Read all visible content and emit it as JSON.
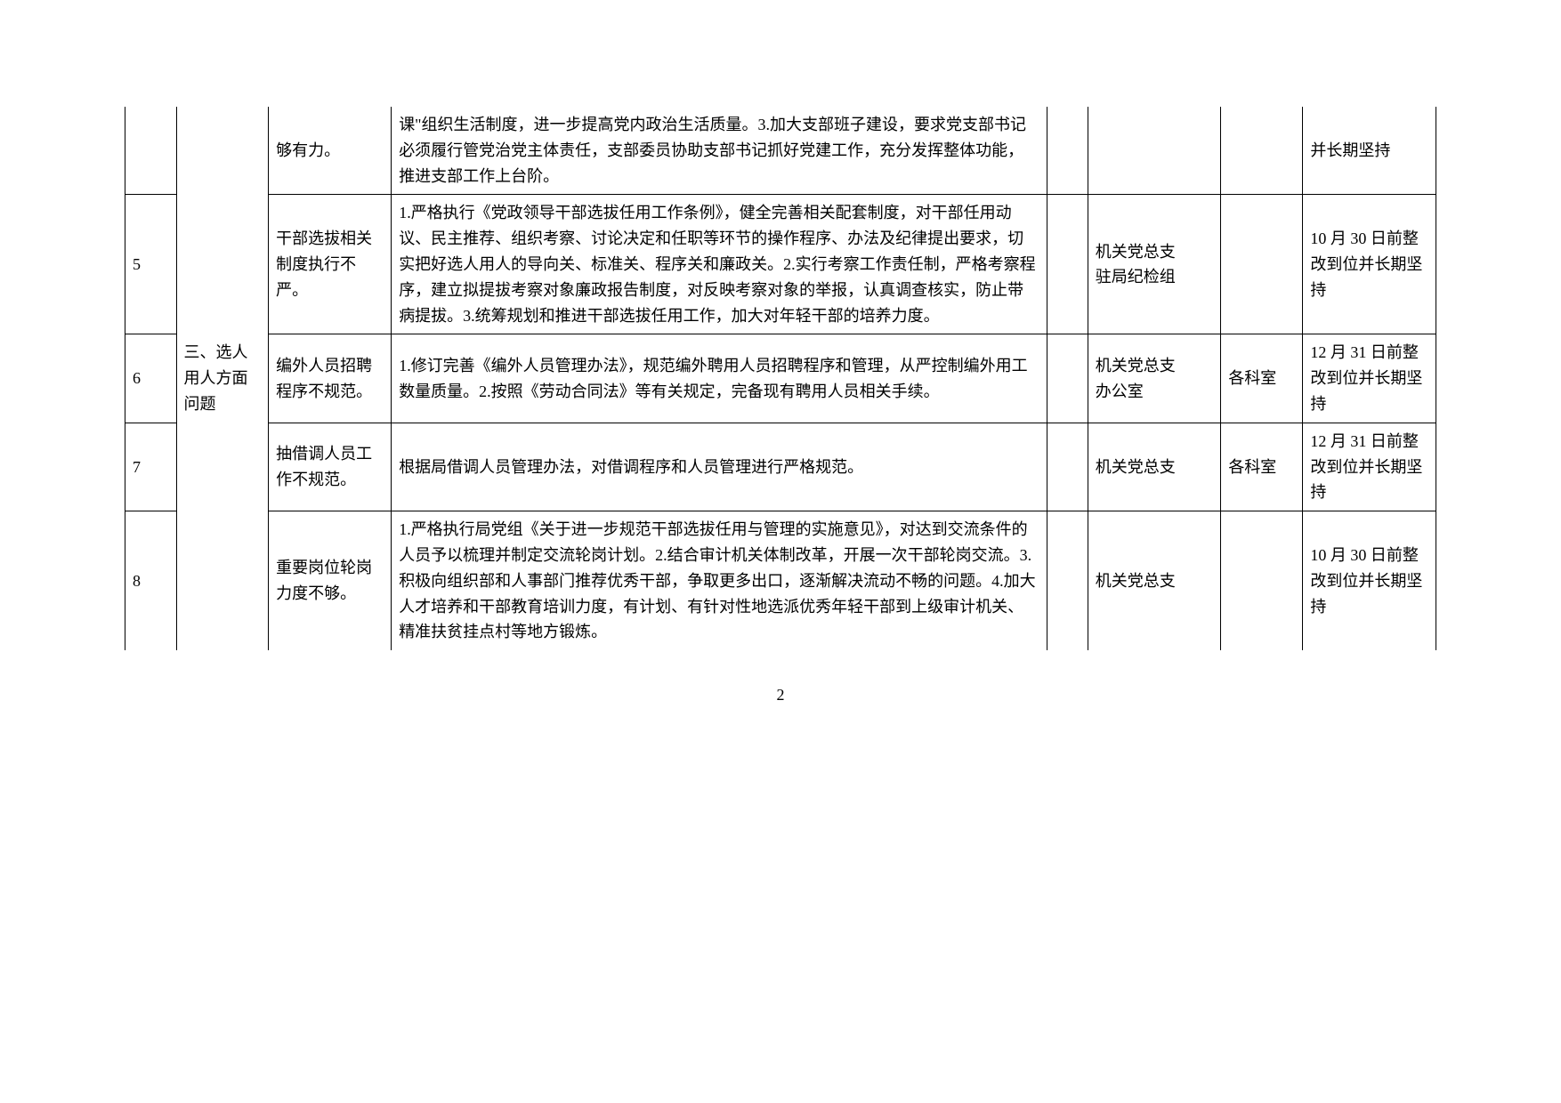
{
  "category": "三、选人用人方面问题",
  "pageNumber": "2",
  "rows": [
    {
      "seq": "",
      "issue": "够有力。",
      "measure": "课\"组织生活制度，进一步提高党内政治生活质量。3.加大支部班子建设，要求党支部书记必须履行管党治党主体责任，支部委员协助支部书记抓好党建工作，充分发挥整体功能，推进支部工作上台阶。",
      "dept": "",
      "sub": "",
      "deadline": "并长期坚持"
    },
    {
      "seq": "5",
      "issue": "干部选拔相关制度执行不严。",
      "measure": "1.严格执行《党政领导干部选拔任用工作条例》，健全完善相关配套制度，对干部任用动议、民主推荐、组织考察、讨论决定和任职等环节的操作程序、办法及纪律提出要求，切实把好选人用人的导向关、标准关、程序关和廉政关。2.实行考察工作责任制，严格考察程序，建立拟提拔考察对象廉政报告制度，对反映考察对象的举报，认真调查核实，防止带病提拔。3.统筹规划和推进干部选拔任用工作，加大对年轻干部的培养力度。",
      "dept": "机关党总支\n驻局纪检组",
      "sub": "",
      "deadline": "10 月 30 日前整改到位并长期坚持"
    },
    {
      "seq": "6",
      "issue": "编外人员招聘程序不规范。",
      "measure": "1.修订完善《编外人员管理办法》，规范编外聘用人员招聘程序和管理，从严控制编外用工数量质量。2.按照《劳动合同法》等有关规定，完备现有聘用人员相关手续。",
      "dept": "机关党总支\n办公室",
      "sub": "各科室",
      "deadline": "12 月 31 日前整改到位并长期坚持"
    },
    {
      "seq": "7",
      "issue": "抽借调人员工作不规范。",
      "measure": "根据局借调人员管理办法，对借调程序和人员管理进行严格规范。",
      "dept": "机关党总支",
      "sub": "各科室",
      "deadline": "12 月 31 日前整改到位并长期坚持"
    },
    {
      "seq": "8",
      "issue": "重要岗位轮岗力度不够。",
      "measure": "1.严格执行局党组《关于进一步规范干部选拔任用与管理的实施意见》，对达到交流条件的人员予以梳理并制定交流轮岗计划。2.结合审计机关体制改革，开展一次干部轮岗交流。3.积极向组织部和人事部门推荐优秀干部，争取更多出口，逐渐解决流动不畅的问题。4.加大人才培养和干部教育培训力度，有计划、有针对性地选派优秀年轻干部到上级审计机关、精准扶贫挂点村等地方锻炼。",
      "dept": "机关党总支",
      "sub": "",
      "deadline": "10 月 30 日前整改到位并长期坚持"
    }
  ]
}
